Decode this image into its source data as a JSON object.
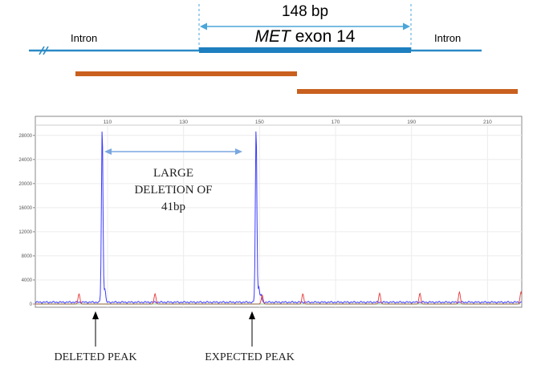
{
  "gene_map": {
    "size_label": "148 bp",
    "exon_label_italic": "MET",
    "exon_label_rest": " exon 14",
    "intron_left": "Intron",
    "intron_right": "Intron",
    "colors": {
      "gene_line": "#2a8ac6",
      "exon_bar": "#1e7fbf",
      "size_arrow": "#4aa6d8",
      "amplicon": "#c9601f"
    }
  },
  "chart_data": {
    "type": "line",
    "title": "",
    "xlabel": "",
    "ylabel": "",
    "x_ticks": [
      110,
      130,
      150,
      170,
      190,
      210
    ],
    "y_ticks": [
      0,
      4000,
      8000,
      12000,
      16000,
      20000,
      24000,
      28000
    ],
    "xlim": [
      91,
      219
    ],
    "ylim": [
      0,
      30500
    ],
    "grid": true,
    "series": [
      {
        "color": "#3b3bff",
        "peaks": [
          {
            "x": 108.6,
            "y": 29200
          },
          {
            "x": 109.3,
            "y": 2200
          },
          {
            "x": 149.1,
            "y": 29200
          },
          {
            "x": 149.8,
            "y": 2500
          },
          {
            "x": 150.4,
            "y": 1300
          }
        ],
        "baseline": 300
      },
      {
        "color": "#e63a3a",
        "peaks": [
          {
            "x": 102.5,
            "y": 1700
          },
          {
            "x": 122.5,
            "y": 1700
          },
          {
            "x": 150.7,
            "y": 1500
          },
          {
            "x": 161.4,
            "y": 1700
          },
          {
            "x": 181.6,
            "y": 1800
          },
          {
            "x": 192.2,
            "y": 1800
          },
          {
            "x": 202.6,
            "y": 2000
          },
          {
            "x": 218.8,
            "y": 2000
          }
        ],
        "baseline": 0
      }
    ],
    "annotations": {
      "deletion_lines": [
        "LARGE",
        "DELETION OF",
        "41bp"
      ],
      "deleted_peak": "DELETED PEAK",
      "expected_peak": "EXPECTED PEAK"
    },
    "colors": {
      "axis": "#888888",
      "grid": "#ececec",
      "annotation_arrow": "#7aa7e0",
      "label_arrow": "#000000"
    }
  }
}
